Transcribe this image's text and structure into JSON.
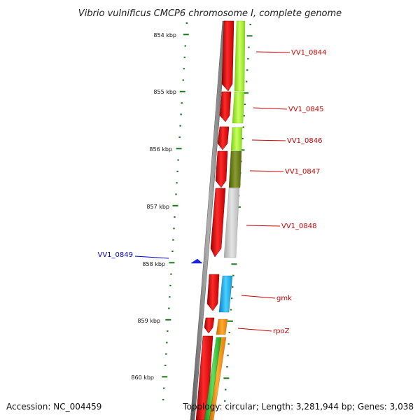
{
  "title": "Vibrio vulnificus CMCP6 chromosome I, complete genome",
  "footer": {
    "accession": "Accession: NC_004459",
    "topology": "Topology: circular; Length: 3,281,944 bp; Genes: 3,038"
  },
  "scale_labels": [
    "854 kbp",
    "855 kbp",
    "856 kbp",
    "857 kbp",
    "858 kbp",
    "859 kbp",
    "860 kbp"
  ],
  "gene_labels": {
    "vv1_0844": "VV1_0844",
    "vv1_0845": "VV1_0845",
    "vv1_0846": "VV1_0846",
    "vv1_0847": "VV1_0847",
    "vv1_0848": "VV1_0848",
    "vv1_0849": "VV1_0849",
    "gmk": "gmk",
    "rpoz": "rpoZ"
  },
  "colors": {
    "backbone": "#8a8a8a",
    "gene_red": "#e8141a",
    "lime": "#a6f028",
    "olive": "#6b7f18",
    "gray_gene": "#c8c8c8",
    "cyan": "#18a8e8",
    "orange": "#f08c10",
    "green": "#30c030",
    "tick_green": "#1a7a1a",
    "label_red": "#cc0000",
    "label_blue": "#0000cc"
  }
}
